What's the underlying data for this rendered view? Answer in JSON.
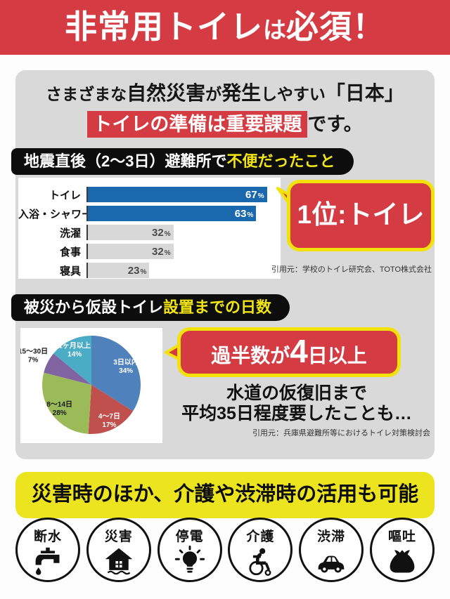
{
  "banner": {
    "part1": "非常用トイレ",
    "part2": "は",
    "part3": "必須！"
  },
  "intro": {
    "seg1": "さまざまな",
    "seg2": "自然災害",
    "seg3": "が",
    "seg4": "発生",
    "seg5": "しやすい",
    "seg6": "「日本」",
    "highlight": "トイレの準備は重要課題",
    "suffix": "です。"
  },
  "headers": {
    "h1_white": "地震直後（2〜3日）避難所で",
    "h1_yellow": "不便だったこと",
    "h2_white": "被災から仮設トイレ",
    "h2_yellow": "設置までの日数"
  },
  "chart_data": [
    {
      "type": "bar",
      "title": "地震直後（2〜3日）避難所で不便だったこと",
      "orientation": "horizontal",
      "categories": [
        "トイレ",
        "入浴・シャワー",
        "洗濯",
        "食事",
        "寝具"
      ],
      "values": [
        67,
        63,
        32,
        32,
        23
      ],
      "unit": "%",
      "xlim": [
        0,
        72
      ],
      "highlighted": [
        true,
        true,
        false,
        false,
        false
      ],
      "highlight_color": "#1a68ae",
      "muted_color": "#d8d8d8",
      "value_color_highlight": "#ffffff",
      "value_color_muted": "#4a4a4a"
    },
    {
      "type": "pie",
      "title": "被災から仮設トイレ設置までの日数",
      "start_angle_deg": 0,
      "direction": "clockwise",
      "slices": [
        {
          "label": "3日以内",
          "value": 34,
          "color": "#4F81BD",
          "label_color": "#ffffff"
        },
        {
          "label": "4〜7日",
          "value": 17,
          "color": "#C0504D",
          "label_color": "#ffffff"
        },
        {
          "label": "8〜14日",
          "value": 28,
          "color": "#9BBB59",
          "label_color": "#1a1a1a"
        },
        {
          "label": "15〜30日",
          "value": 7,
          "color": "#8064A2",
          "label_color": "#1a1a1a",
          "label_outside": true
        },
        {
          "label": "1ヶ月以上",
          "value": 14,
          "color": "#4BACC6",
          "label_color": "#ffffff"
        }
      ]
    }
  ],
  "bubbles": {
    "b1_text": "1位:トイレ",
    "b2_pre": "過半数が",
    "b2_big": "4",
    "b2_post": "日以上"
  },
  "sources": {
    "s1": "引用元：学校のトイレ研究会、TOTO株式会社",
    "s2": "引用元：兵庫県避難所等におけるトイレ対策検討会"
  },
  "note": {
    "line1": "水道の仮復旧まで",
    "line2": "平均35日程度要したことも…"
  },
  "footer": {
    "banner_text": "災害時のほか、介護や渋滞時の活用も可能",
    "items": [
      {
        "label": "断水",
        "icon": "faucet-icon"
      },
      {
        "label": "災害",
        "icon": "flood-house-icon"
      },
      {
        "label": "停電",
        "icon": "lightbulb-icon"
      },
      {
        "label": "介護",
        "icon": "wheelchair-icon"
      },
      {
        "label": "渋滞",
        "icon": "car-icon"
      },
      {
        "label": "嘔吐",
        "icon": "vomit-bag-icon"
      }
    ]
  },
  "colors": {
    "accent_red": "#d53b42",
    "accent_yellow": "#ece41e",
    "bubble_border_yellow": "#f2e20a",
    "header_black": "#0d0d0d",
    "header_yellow_text": "#f2e516",
    "panel_gray": "#d9d9d9",
    "bar_blue": "#1a68ae",
    "bar_gray": "#d8d8d8"
  }
}
